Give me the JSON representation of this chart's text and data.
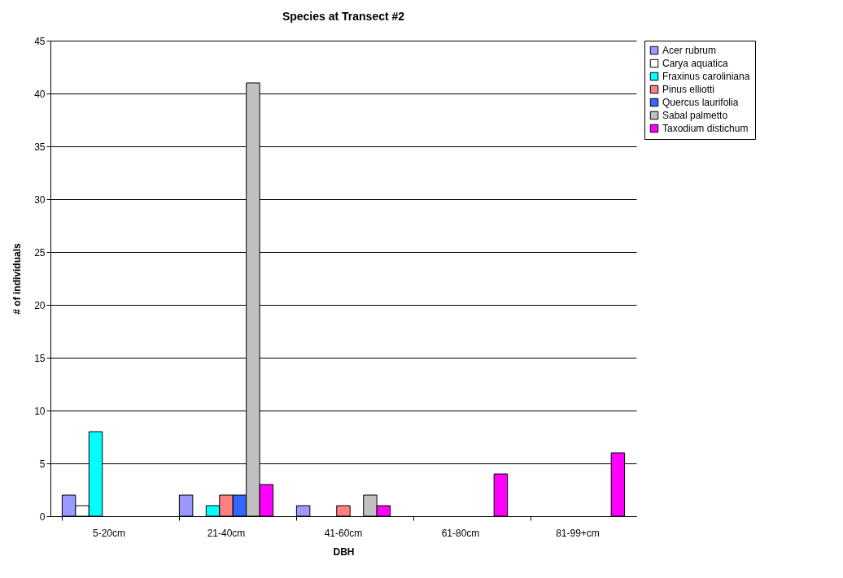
{
  "chart_data": {
    "type": "bar",
    "title": "Species at Transect #2",
    "xlabel": "DBH",
    "ylabel": "# of individuals",
    "categories": [
      "5-20cm",
      "21-40cm",
      "41-60cm",
      "61-80cm",
      "81-99+cm"
    ],
    "series": [
      {
        "name": "Acer rubrum",
        "color": "#9999ff",
        "values": [
          2,
          2,
          1,
          0,
          0
        ]
      },
      {
        "name": "Carya aquatica",
        "color": "#ffffff",
        "values": [
          1,
          0,
          0,
          0,
          0
        ]
      },
      {
        "name": "Fraxinus caroliniana",
        "color": "#00ffff",
        "values": [
          8,
          1,
          0,
          0,
          0
        ]
      },
      {
        "name": "Pinus elliotti",
        "color": "#ff8080",
        "values": [
          0,
          2,
          1,
          0,
          0
        ]
      },
      {
        "name": "Quercus laurifolia",
        "color": "#3366ff",
        "values": [
          0,
          2,
          0,
          0,
          0
        ]
      },
      {
        "name": "Sabal palmetto",
        "color": "#c0c0c0",
        "values": [
          0,
          41,
          2,
          0,
          0
        ]
      },
      {
        "name": "Taxodium distichum",
        "color": "#ff00ff",
        "values": [
          0,
          3,
          1,
          4,
          6
        ]
      }
    ],
    "ylim": [
      0,
      45
    ],
    "yticks": [
      0,
      5,
      10,
      15,
      20,
      25,
      30,
      35,
      40,
      45
    ],
    "grid": "y",
    "legend": "right"
  }
}
